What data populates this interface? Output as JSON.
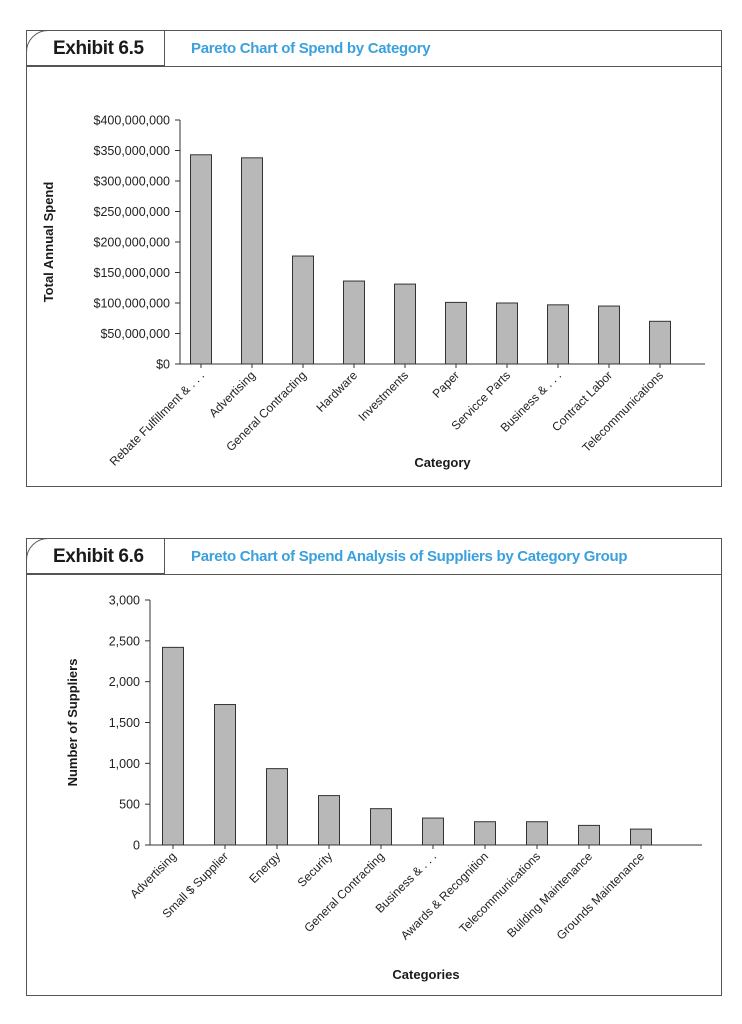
{
  "colors": {
    "title": "#3aa1dc",
    "bar_fill": "#b8b8b8",
    "bar_stroke": "#333333",
    "frame": "#555555"
  },
  "exhibits": [
    {
      "label": "Exhibit 6.5",
      "title": "Pareto Chart of Spend by Category",
      "chart_data": {
        "type": "bar",
        "title": "Pareto Chart of Spend by Category",
        "xlabel": "Category",
        "ylabel": "Total Annual Spend",
        "ylim": [
          0,
          400000000
        ],
        "yticks": [
          0,
          50000000,
          100000000,
          150000000,
          200000000,
          250000000,
          300000000,
          350000000,
          400000000
        ],
        "ytick_labels": [
          "$0",
          "$50,000,000",
          "$100,000,000",
          "$150,000,000",
          "$200,000,000",
          "$250,000,000",
          "$300,000,000",
          "$350,000,000",
          "$400,000,000"
        ],
        "categories": [
          "Rebate Fulfillment & . . .",
          "Advertising",
          "General Contracting",
          "Hardware",
          "Investments",
          "Paper",
          "Servicce Parts",
          "Business & . . .",
          "Contract Labor",
          "Telecommunications"
        ],
        "values": [
          343000000,
          338000000,
          177000000,
          136000000,
          131000000,
          101000000,
          100000000,
          97000000,
          95000000,
          70000000
        ],
        "grid": false,
        "legend": "none"
      }
    },
    {
      "label": "Exhibit 6.6",
      "title": "Pareto Chart of Spend Analysis of Suppliers by Category Group",
      "chart_data": {
        "type": "bar",
        "title": "Pareto Chart of Spend Analysis of Suppliers by Category Group",
        "xlabel": "Categories",
        "ylabel": "Number of Suppliers",
        "ylim": [
          0,
          3000
        ],
        "yticks": [
          0,
          500,
          1000,
          1500,
          2000,
          2500,
          3000
        ],
        "ytick_labels": [
          "0",
          "500",
          "1,000",
          "1,500",
          "2,000",
          "2,500",
          "3,000"
        ],
        "categories": [
          "Advertising",
          "Small $ Supplier",
          "Energy",
          "Security",
          "General Contracting",
          "Business & . . .",
          "Awards & Recognition",
          "Telecommunications",
          "Building Maintenance",
          "Grounds Maintenance"
        ],
        "values": [
          2420,
          1720,
          935,
          605,
          445,
          330,
          285,
          285,
          240,
          195
        ],
        "grid": false,
        "legend": "none"
      }
    }
  ]
}
